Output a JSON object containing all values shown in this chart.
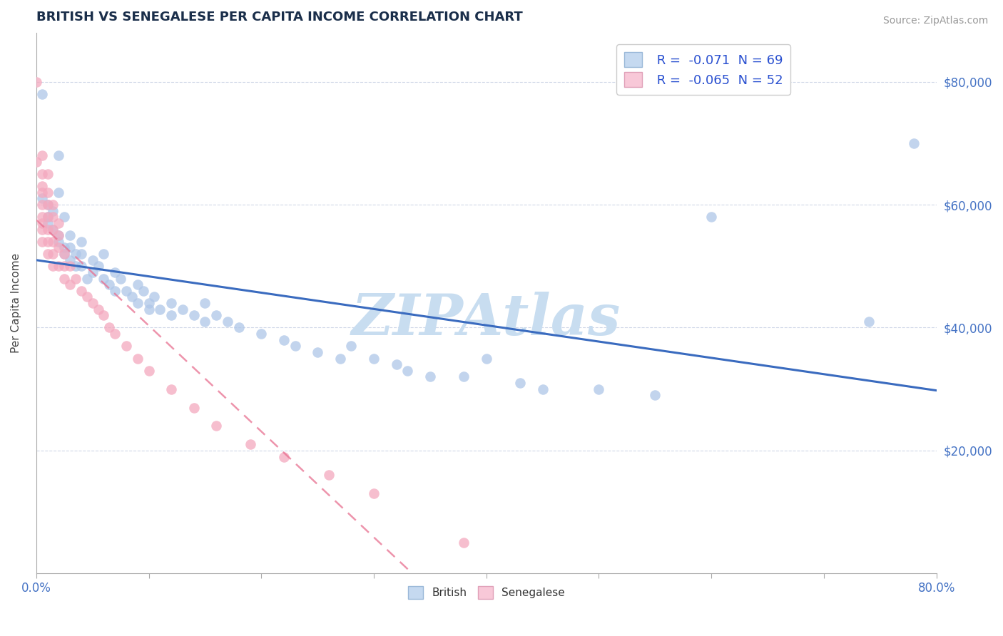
{
  "title": "BRITISH VS SENEGALESE PER CAPITA INCOME CORRELATION CHART",
  "source_text": "Source: ZipAtlas.com",
  "ylabel": "Per Capita Income",
  "xlim": [
    0.0,
    0.8
  ],
  "ylim": [
    0,
    88000
  ],
  "xtick_vals": [
    0.0,
    0.1,
    0.2,
    0.3,
    0.4,
    0.5,
    0.6,
    0.7,
    0.8
  ],
  "ytick_vals": [
    20000,
    40000,
    60000,
    80000
  ],
  "british_r": -0.071,
  "british_n": 69,
  "senegalese_r": -0.065,
  "senegalese_n": 52,
  "british_color": "#aec6e8",
  "senegalese_color": "#f4a8be",
  "british_edge_color": "#aec6e8",
  "senegalese_edge_color": "#f4a8be",
  "british_line_color": "#3a6bbf",
  "senegalese_line_color": "#e87090",
  "legend_british_fill": "#c5d9f0",
  "legend_senegalese_fill": "#f8c8d8",
  "watermark": "ZIPAtlas",
  "watermark_color": "#c8ddf0",
  "title_color": "#1a2e4a",
  "axis_label_color": "#444444",
  "tick_color": "#4472c4",
  "grid_color": "#d0d8e8",
  "british_x": [
    0.005,
    0.02,
    0.005,
    0.01,
    0.01,
    0.01,
    0.015,
    0.015,
    0.02,
    0.02,
    0.02,
    0.025,
    0.025,
    0.025,
    0.03,
    0.03,
    0.03,
    0.035,
    0.035,
    0.04,
    0.04,
    0.04,
    0.045,
    0.05,
    0.05,
    0.055,
    0.06,
    0.06,
    0.065,
    0.07,
    0.07,
    0.075,
    0.08,
    0.085,
    0.09,
    0.09,
    0.095,
    0.1,
    0.1,
    0.105,
    0.11,
    0.12,
    0.12,
    0.13,
    0.14,
    0.15,
    0.15,
    0.16,
    0.17,
    0.18,
    0.2,
    0.22,
    0.23,
    0.25,
    0.27,
    0.28,
    0.3,
    0.32,
    0.33,
    0.35,
    0.38,
    0.4,
    0.43,
    0.45,
    0.5,
    0.55,
    0.6,
    0.74,
    0.78
  ],
  "british_y": [
    78000,
    68000,
    61000,
    60000,
    58000,
    57000,
    59000,
    56000,
    62000,
    55000,
    54000,
    58000,
    53000,
    52000,
    55000,
    53000,
    51000,
    52000,
    50000,
    54000,
    52000,
    50000,
    48000,
    51000,
    49000,
    50000,
    52000,
    48000,
    47000,
    49000,
    46000,
    48000,
    46000,
    45000,
    47000,
    44000,
    46000,
    44000,
    43000,
    45000,
    43000,
    42000,
    44000,
    43000,
    42000,
    44000,
    41000,
    42000,
    41000,
    40000,
    39000,
    38000,
    37000,
    36000,
    35000,
    37000,
    35000,
    34000,
    33000,
    32000,
    32000,
    35000,
    31000,
    30000,
    30000,
    29000,
    58000,
    41000,
    70000
  ],
  "senegalese_x": [
    0.0,
    0.0,
    0.005,
    0.005,
    0.005,
    0.005,
    0.005,
    0.005,
    0.005,
    0.005,
    0.005,
    0.01,
    0.01,
    0.01,
    0.01,
    0.01,
    0.01,
    0.01,
    0.015,
    0.015,
    0.015,
    0.015,
    0.015,
    0.015,
    0.02,
    0.02,
    0.02,
    0.02,
    0.025,
    0.025,
    0.025,
    0.03,
    0.03,
    0.035,
    0.04,
    0.045,
    0.05,
    0.055,
    0.06,
    0.065,
    0.07,
    0.08,
    0.09,
    0.1,
    0.12,
    0.14,
    0.16,
    0.19,
    0.22,
    0.26,
    0.3,
    0.38
  ],
  "senegalese_y": [
    80000,
    67000,
    68000,
    65000,
    63000,
    62000,
    60000,
    58000,
    57000,
    56000,
    54000,
    65000,
    62000,
    60000,
    58000,
    56000,
    54000,
    52000,
    60000,
    58000,
    56000,
    54000,
    52000,
    50000,
    57000,
    55000,
    53000,
    50000,
    52000,
    50000,
    48000,
    50000,
    47000,
    48000,
    46000,
    45000,
    44000,
    43000,
    42000,
    40000,
    39000,
    37000,
    35000,
    33000,
    30000,
    27000,
    24000,
    21000,
    19000,
    16000,
    13000,
    5000
  ]
}
